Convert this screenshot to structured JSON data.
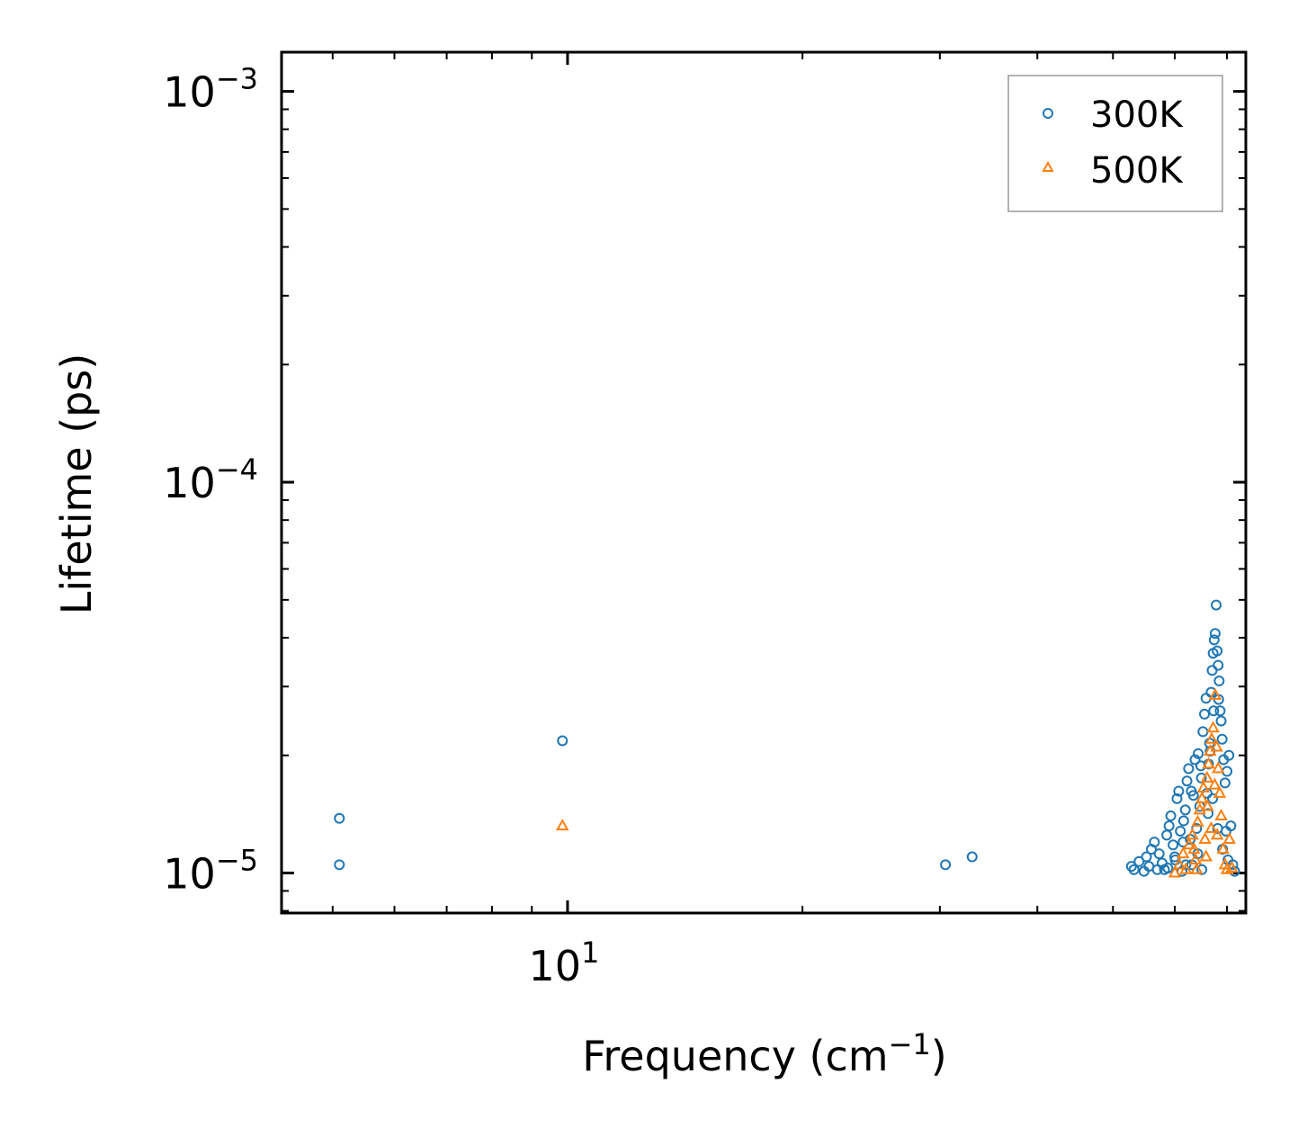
{
  "chart_data": {
    "type": "scatter",
    "xlabel": "Frequency (cm",
    "xlabel_sup": "−1",
    "xlabel_suffix": ")",
    "ylabel": "Lifetime (ps)",
    "xscale": "log",
    "yscale": "log",
    "xlim": [
      4.3,
      74
    ],
    "ylim": [
      7.9e-06,
      0.00126
    ],
    "x_ticks": [
      {
        "value": 10,
        "base": "10",
        "exp": "1"
      }
    ],
    "y_ticks": [
      {
        "value": 1e-05,
        "base": "10",
        "exp": "−5"
      },
      {
        "value": 0.0001,
        "base": "10",
        "exp": "−4"
      },
      {
        "value": 0.001,
        "base": "10",
        "exp": "−3"
      }
    ],
    "legend_position": "top-right",
    "series": [
      {
        "name": "300K",
        "color": "#1f77b4",
        "marker": "circle",
        "points": [
          [
            5.1,
            1.05e-05
          ],
          [
            5.1,
            1.38e-05
          ],
          [
            9.85,
            2.18e-05
          ],
          [
            30.5,
            1.05e-05
          ],
          [
            33.0,
            1.1e-05
          ],
          [
            52.8,
            1.04e-05
          ],
          [
            53.2,
            1.02e-05
          ],
          [
            54.0,
            1.07e-05
          ],
          [
            54.8,
            1.01e-05
          ],
          [
            55.2,
            1.1e-05
          ],
          [
            55.6,
            1.04e-05
          ],
          [
            56.0,
            1.15e-05
          ],
          [
            56.5,
            1.2e-05
          ],
          [
            57.0,
            1.02e-05
          ],
          [
            57.3,
            1.12e-05
          ],
          [
            57.8,
            1.06e-05
          ],
          [
            58.2,
            1.02e-05
          ],
          [
            58.6,
            1.25e-05
          ],
          [
            59.0,
            1.32e-05
          ],
          [
            59.3,
            1.4e-05
          ],
          [
            59.7,
            1.18e-05
          ],
          [
            60.1,
            1.08e-05
          ],
          [
            60.4,
            1.55e-05
          ],
          [
            60.7,
            1.62e-05
          ],
          [
            61.0,
            1.28e-05
          ],
          [
            61.3,
            1.01e-05
          ],
          [
            61.6,
            1.36e-05
          ],
          [
            61.9,
            1.45e-05
          ],
          [
            62.2,
            1.72e-05
          ],
          [
            62.5,
            1.85e-05
          ],
          [
            62.8,
            1.22e-05
          ],
          [
            63.1,
            1.05e-05
          ],
          [
            63.4,
            1.58e-05
          ],
          [
            63.7,
            1.95e-05
          ],
          [
            64.0,
            1.3e-05
          ],
          [
            64.3,
            2.02e-05
          ],
          [
            64.6,
            1.48e-05
          ],
          [
            64.9,
            1.75e-05
          ],
          [
            65.2,
            2.3e-05
          ],
          [
            65.5,
            2.55e-05
          ],
          [
            65.8,
            2.8e-05
          ],
          [
            66.0,
            1.6e-05
          ],
          [
            66.3,
            1.9e-05
          ],
          [
            66.5,
            2.15e-05
          ],
          [
            66.8,
            2.9e-05
          ],
          [
            67.0,
            3.3e-05
          ],
          [
            67.2,
            3.65e-05
          ],
          [
            67.4,
            3.95e-05
          ],
          [
            67.6,
            4.1e-05
          ],
          [
            67.8,
            4.85e-05
          ],
          [
            68.0,
            3.7e-05
          ],
          [
            68.2,
            3.4e-05
          ],
          [
            68.4,
            3.1e-05
          ],
          [
            68.6,
            2.6e-05
          ],
          [
            68.8,
            2.45e-05
          ],
          [
            69.0,
            2.2e-05
          ],
          [
            69.3,
            1.95e-05
          ],
          [
            69.6,
            1.7e-05
          ],
          [
            70.0,
            1.82e-05
          ],
          [
            70.4,
            2e-05
          ],
          [
            70.8,
            1.32e-05
          ],
          [
            71.2,
            1.05e-05
          ],
          [
            71.6,
            1.01e-05
          ],
          [
            64.2,
            1.12e-05
          ],
          [
            65.0,
            1.02e-05
          ],
          [
            66.2,
            1.42e-05
          ],
          [
            67.1,
            1.55e-05
          ],
          [
            68.1,
            1.3e-05
          ],
          [
            69.1,
            1.15e-05
          ],
          [
            63.0,
            1.62e-05
          ],
          [
            61.5,
            1.2e-05
          ],
          [
            60.0,
            1.1e-05
          ],
          [
            58.8,
            1.03e-05
          ],
          [
            62.0,
            1.05e-05
          ],
          [
            64.8,
            1.88e-05
          ],
          [
            66.6,
            2.05e-05
          ],
          [
            67.3,
            2.6e-05
          ],
          [
            68.3,
            2.78e-05
          ],
          [
            69.8,
            1.28e-05
          ],
          [
            70.2,
            1.08e-05
          ]
        ]
      },
      {
        "name": "500K",
        "color": "#ff7f0e",
        "marker": "triangle",
        "points": [
          [
            9.85,
            1.32e-05
          ],
          [
            60.0,
            1e-05
          ],
          [
            60.8,
            1.05e-05
          ],
          [
            61.5,
            1.12e-05
          ],
          [
            62.0,
            1.02e-05
          ],
          [
            62.6,
            1.18e-05
          ],
          [
            63.2,
            1.25e-05
          ],
          [
            63.8,
            1.08e-05
          ],
          [
            64.2,
            1.35e-05
          ],
          [
            64.6,
            1.45e-05
          ],
          [
            65.0,
            1.55e-05
          ],
          [
            65.3,
            1.65e-05
          ],
          [
            65.6,
            1.22e-05
          ],
          [
            66.0,
            1.75e-05
          ],
          [
            66.3,
            1.9e-05
          ],
          [
            66.6,
            2.05e-05
          ],
          [
            66.9,
            2.2e-05
          ],
          [
            67.2,
            2.35e-05
          ],
          [
            67.6,
            2.85e-05
          ],
          [
            67.9,
            2.1e-05
          ],
          [
            68.2,
            1.85e-05
          ],
          [
            68.5,
            1.6e-05
          ],
          [
            68.8,
            1.4e-05
          ],
          [
            69.2,
            1.15e-05
          ],
          [
            69.6,
            1.05e-05
          ],
          [
            70.0,
            1.02e-05
          ],
          [
            70.5,
            1.22e-05
          ],
          [
            71.0,
            1.03e-05
          ],
          [
            64.0,
            1.02e-05
          ],
          [
            65.8,
            1.1e-05
          ],
          [
            66.8,
            1.3e-05
          ],
          [
            67.5,
            1.68e-05
          ],
          [
            68.0,
            1.25e-05
          ],
          [
            63.5,
            1.15e-05
          ],
          [
            66.1,
            1.48e-05
          ]
        ]
      }
    ]
  }
}
